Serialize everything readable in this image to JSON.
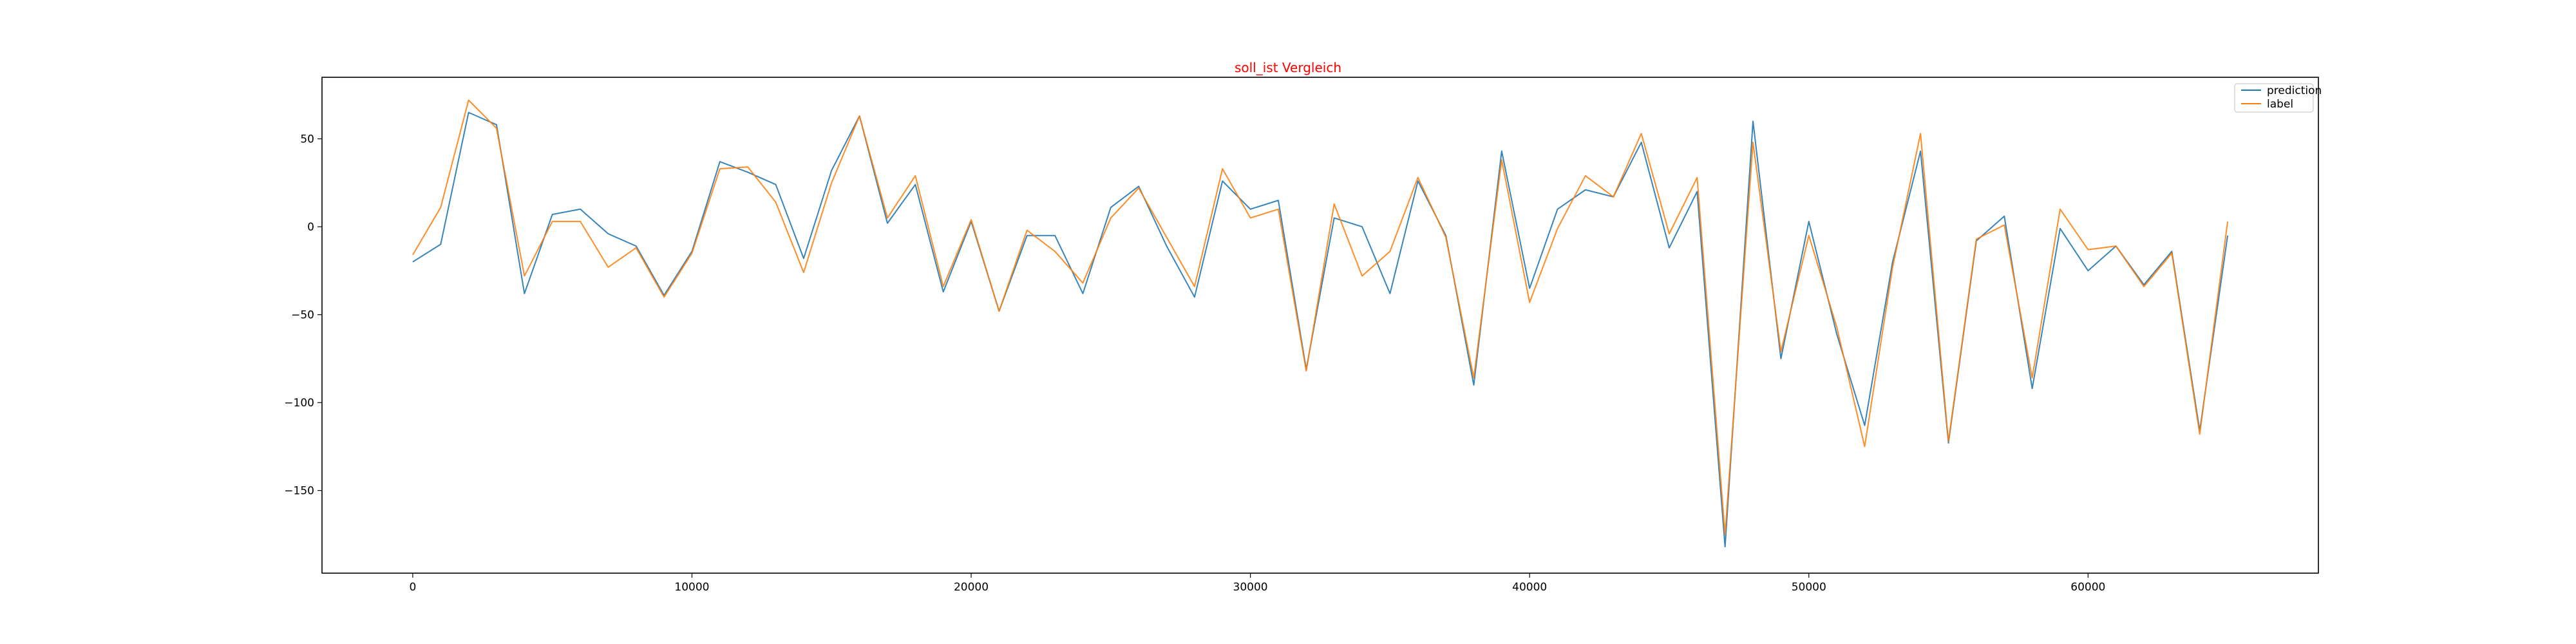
{
  "chart_data": {
    "type": "line",
    "title": "soll_ist Vergleich",
    "title_color": "#ff0000",
    "xlabel": "",
    "ylabel": "",
    "xlim": [
      -3250,
      68250
    ],
    "ylim": [
      -197,
      85
    ],
    "x_ticks": [
      0,
      10000,
      20000,
      30000,
      40000,
      50000,
      60000
    ],
    "x_tick_labels": [
      "0",
      "10000",
      "20000",
      "30000",
      "40000",
      "50000",
      "60000"
    ],
    "y_ticks": [
      50,
      0,
      -50,
      -100,
      -150
    ],
    "y_tick_labels": [
      "50",
      "0",
      "−50",
      "−100",
      "−150"
    ],
    "grid": false,
    "legend_position": "top-right",
    "x": [
      0,
      1000,
      2000,
      3000,
      4000,
      5000,
      6000,
      7000,
      8000,
      9000,
      10000,
      11000,
      12000,
      13000,
      14000,
      15000,
      16000,
      17000,
      18000,
      19000,
      20000,
      21000,
      22000,
      23000,
      24000,
      25000,
      26000,
      27000,
      28000,
      29000,
      30000,
      31000,
      32000,
      33000,
      34000,
      35000,
      36000,
      37000,
      38000,
      39000,
      40000,
      41000,
      42000,
      43000,
      44000,
      45000,
      46000,
      47000,
      48000,
      49000,
      50000,
      51000,
      52000,
      53000,
      54000,
      55000,
      56000,
      57000,
      58000,
      59000,
      60000,
      61000,
      62000,
      63000,
      64000,
      65000
    ],
    "series": [
      {
        "name": "prediction",
        "color": "#1f77b4",
        "values": [
          -20,
          -10,
          65,
          58,
          -38,
          7,
          10,
          -4,
          -11,
          -39,
          -14,
          37,
          31,
          24,
          -18,
          32,
          63,
          2,
          24,
          -37,
          3,
          -48,
          -5,
          -5,
          -38,
          11,
          23,
          -11,
          -40,
          26,
          10,
          15,
          -81,
          5,
          0,
          -38,
          26,
          -5,
          -90,
          43,
          -35,
          10,
          21,
          17,
          48,
          -12,
          20,
          -182,
          60,
          -75,
          3,
          -61,
          -113,
          -20,
          43,
          -123,
          -8,
          6,
          -92,
          -1,
          -25,
          -11,
          -33,
          -14,
          -116,
          -5
        ]
      },
      {
        "name": "label",
        "color": "#ff7f0e",
        "values": [
          -16,
          11,
          72,
          56,
          -28,
          3,
          3,
          -23,
          -12,
          -40,
          -15,
          33,
          34,
          14,
          -26,
          25,
          63,
          5,
          29,
          -34,
          4,
          -48,
          -2,
          -14,
          -32,
          5,
          22,
          -6,
          -34,
          33,
          5,
          10,
          -82,
          13,
          -28,
          -14,
          28,
          -6,
          -86,
          38,
          -43,
          -1,
          29,
          17,
          53,
          -4,
          28,
          -175,
          48,
          -71,
          -5,
          -57,
          -125,
          -23,
          53,
          -122,
          -7,
          1,
          -86,
          10,
          -13,
          -11,
          -34,
          -15,
          -118,
          3
        ]
      }
    ]
  }
}
